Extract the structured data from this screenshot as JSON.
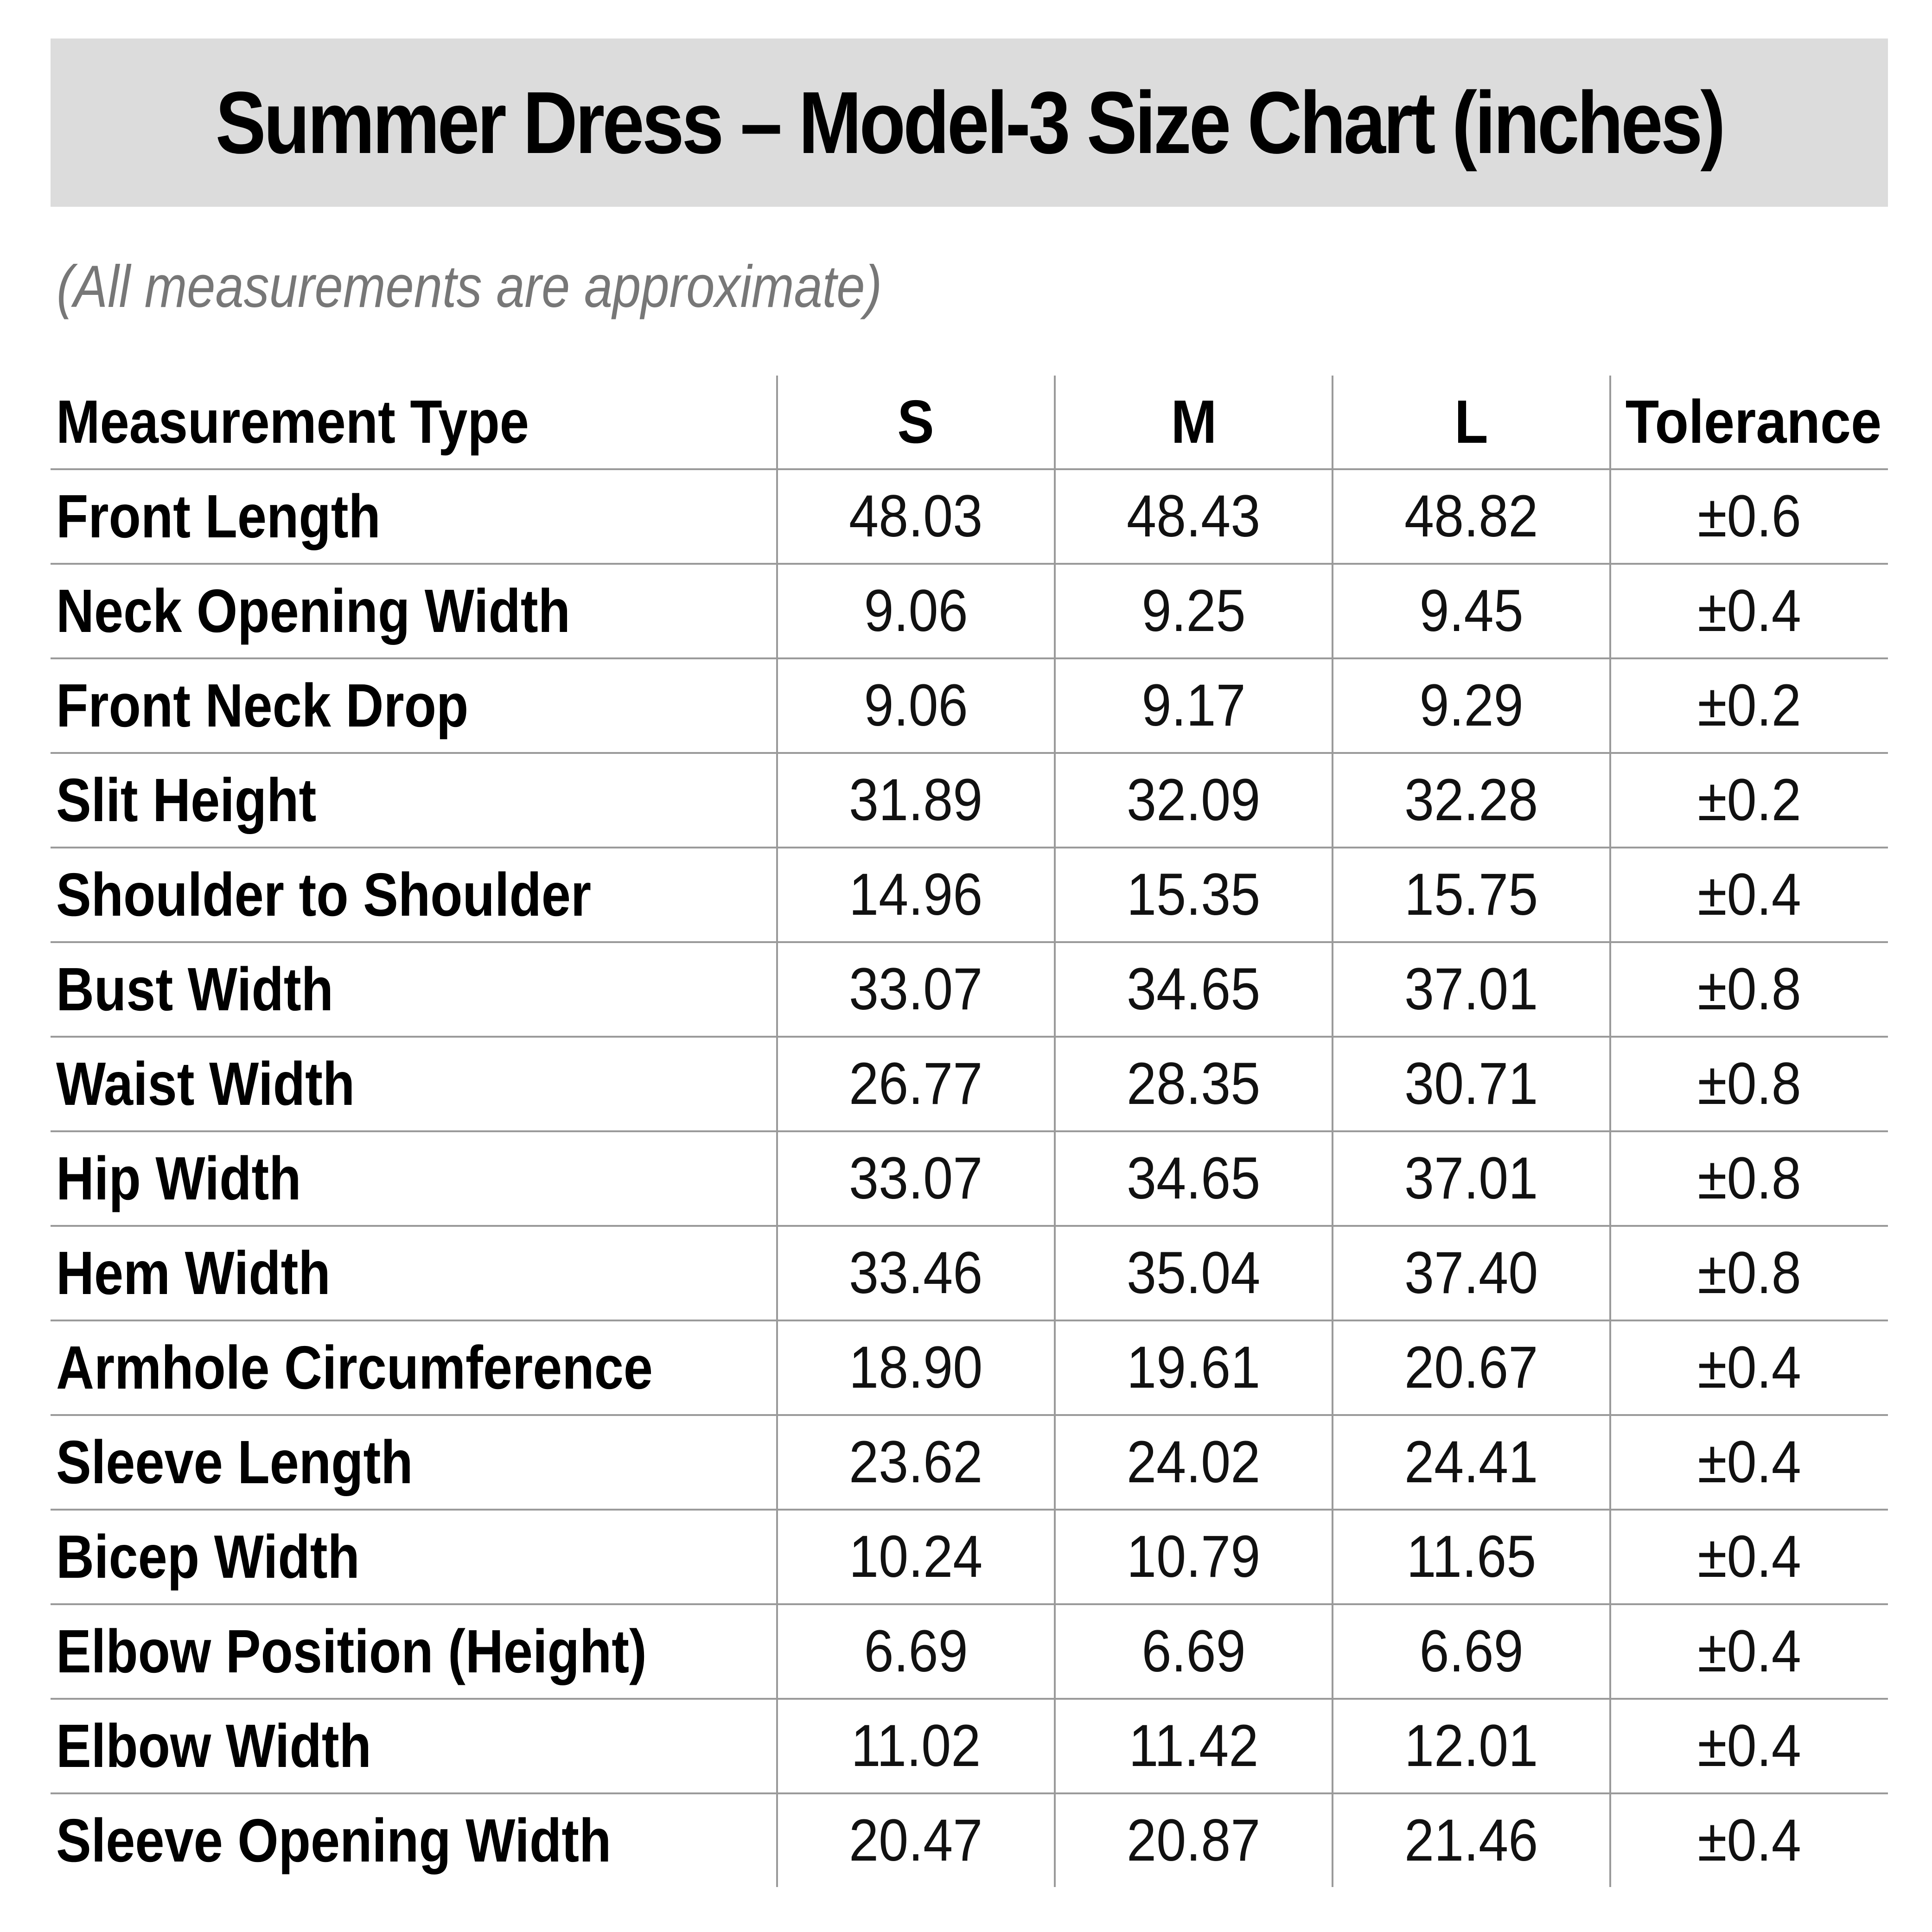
{
  "title": "Summer Dress – Model-3 Size Chart (inches)",
  "subtitle": "(All measurements are approximate)",
  "table": {
    "headers": [
      "Measurement Type",
      "S",
      "M",
      "L",
      "Tolerance"
    ],
    "rows": [
      [
        "Front Length",
        "48.03",
        "48.43",
        "48.82",
        "±0.6"
      ],
      [
        "Neck Opening Width",
        "9.06",
        "9.25",
        "9.45",
        "±0.4"
      ],
      [
        "Front Neck Drop",
        "9.06",
        "9.17",
        "9.29",
        "±0.2"
      ],
      [
        "Slit Height",
        "31.89",
        "32.09",
        "32.28",
        "±0.2"
      ],
      [
        "Shoulder to Shoulder",
        "14.96",
        "15.35",
        "15.75",
        "±0.4"
      ],
      [
        "Bust Width",
        "33.07",
        "34.65",
        "37.01",
        "±0.8"
      ],
      [
        "Waist Width",
        "26.77",
        "28.35",
        "30.71",
        "±0.8"
      ],
      [
        "Hip Width",
        "33.07",
        "34.65",
        "37.01",
        "±0.8"
      ],
      [
        "Hem Width",
        "33.46",
        "35.04",
        "37.40",
        "±0.8"
      ],
      [
        "Armhole Circumference",
        "18.90",
        "19.61",
        "20.67",
        "±0.4"
      ],
      [
        "Sleeve Length",
        "23.62",
        "24.02",
        "24.41",
        "±0.4"
      ],
      [
        "Bicep Width",
        "10.24",
        "10.79",
        "11.65",
        "±0.4"
      ],
      [
        "Elbow Position (Height)",
        "6.69",
        "6.69",
        "6.69",
        "±0.4"
      ],
      [
        "Elbow Width",
        "11.02",
        "11.42",
        "12.01",
        "±0.4"
      ],
      [
        "Sleeve Opening Width",
        "20.47",
        "20.87",
        "21.46",
        "±0.4"
      ]
    ]
  }
}
